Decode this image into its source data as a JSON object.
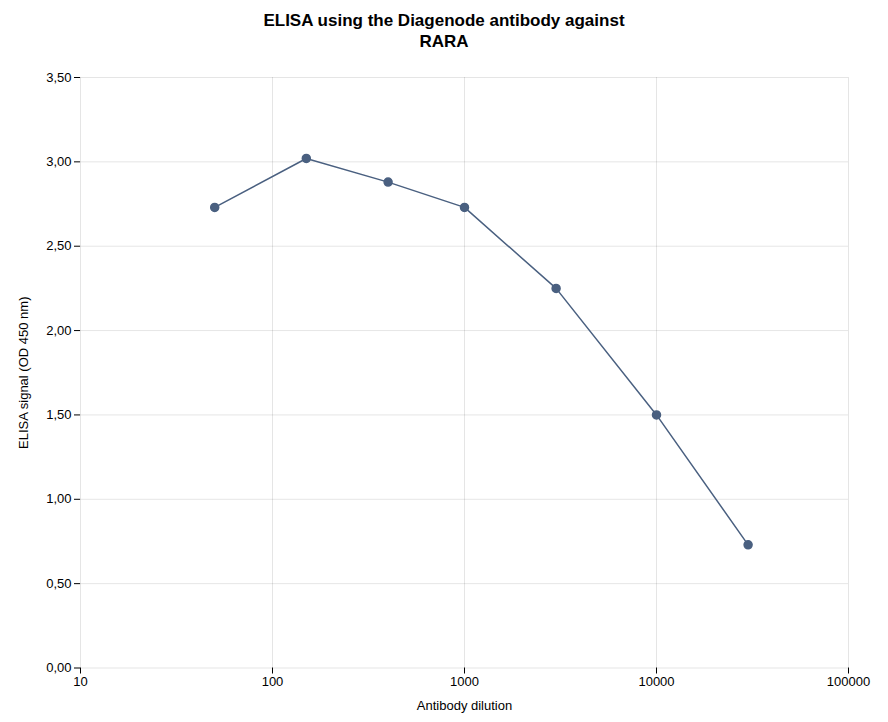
{
  "chart_data": {
    "type": "line",
    "title": "ELISA using the Diagenode antibody against\nRARA",
    "x_label": "Antibody dilution",
    "y_label": "ELISA signal (OD 450 nm)",
    "x": [
      50,
      150,
      400,
      1000,
      3000,
      10000,
      30000
    ],
    "values": [
      2.73,
      3.02,
      2.88,
      2.73,
      2.25,
      1.5,
      0.73
    ],
    "color": "#4a6080",
    "marker": "circle",
    "log": "x",
    "grid": true,
    "xlim": [
      10,
      100000
    ],
    "ylim": [
      0.0,
      3.5
    ],
    "xticks": [
      10,
      100,
      1000,
      10000,
      100000
    ],
    "yticks": [
      {
        "value": 0.0,
        "label": "0,00"
      },
      {
        "value": 0.5,
        "label": "0,50"
      },
      {
        "value": 1.0,
        "label": "1,00"
      },
      {
        "value": 1.5,
        "label": "1,50"
      },
      {
        "value": 2.0,
        "label": "2,00"
      },
      {
        "value": 2.5,
        "label": "2,50"
      },
      {
        "value": 3.0,
        "label": "3,00"
      },
      {
        "value": 3.5,
        "label": "3,50"
      }
    ]
  }
}
